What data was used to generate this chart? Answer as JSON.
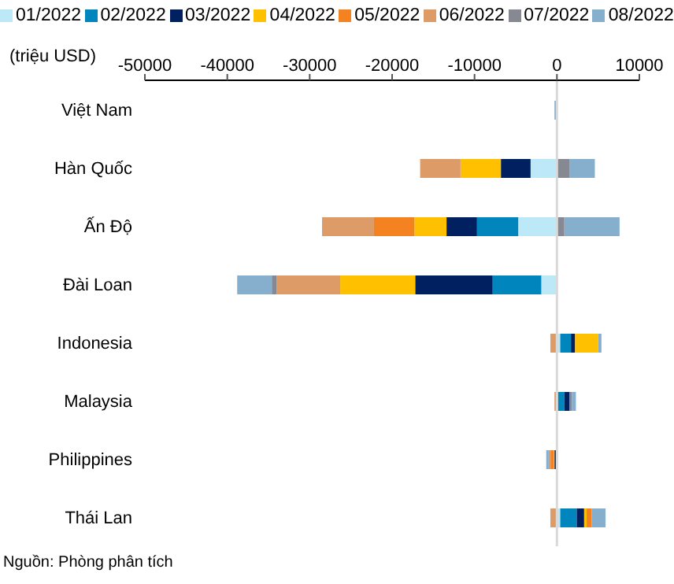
{
  "chart_data": {
    "type": "bar",
    "orientation": "horizontal",
    "stacked": true,
    "legend": "top",
    "xlabel": "(triệu USD)",
    "categories": [
      "Việt Nam",
      "Hàn Quốc",
      "Ấn Độ",
      "Đài Loan",
      "Indonesia",
      "Malaysia",
      "Philippines",
      "Thái Lan"
    ],
    "xlim": [
      -50000,
      10000
    ],
    "xticks": [
      -50000,
      -40000,
      -30000,
      -20000,
      -10000,
      0,
      10000
    ],
    "ref_lines": [
      {
        "axis": "x",
        "value": 0,
        "color": "#d9d9d9"
      }
    ],
    "series": [
      {
        "name": "01/2022",
        "color": "#bde8f8",
        "values": [
          null,
          -3200,
          -4700,
          -1900,
          400,
          100,
          -100,
          400
        ]
      },
      {
        "name": "02/2022",
        "color": "#0086bd",
        "values": [
          null,
          null,
          -5000,
          -5900,
          1300,
          800,
          null,
          2000
        ]
      },
      {
        "name": "03/2022",
        "color": "#00205f",
        "values": [
          null,
          -3600,
          -3700,
          -9400,
          500,
          600,
          -200,
          900
        ]
      },
      {
        "name": "04/2022",
        "color": "#ffc000",
        "values": [
          null,
          -4900,
          -3900,
          -9100,
          2800,
          null,
          -100,
          300
        ]
      },
      {
        "name": "05/2022",
        "color": "#f58220",
        "values": [
          null,
          null,
          -4900,
          null,
          null,
          null,
          -300,
          600
        ]
      },
      {
        "name": "06/2022",
        "color": "#dd9b67",
        "values": [
          null,
          -4900,
          -6300,
          -7700,
          -800,
          -300,
          -300,
          -800
        ]
      },
      {
        "name": "07/2022",
        "color": "#868991",
        "values": [
          null,
          1500,
          900,
          -600,
          null,
          300,
          null,
          null
        ]
      },
      {
        "name": "08/2022",
        "color": "#86aecd",
        "values": [
          -300,
          3100,
          6700,
          -4200,
          400,
          500,
          -300,
          1700
        ]
      }
    ],
    "annotations": [
      "Nguồn: Phòng phân tích"
    ]
  }
}
